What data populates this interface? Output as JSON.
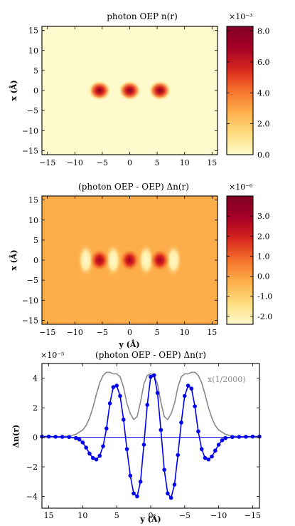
{
  "chart_data": [
    {
      "type": "heatmap",
      "title": "photon OEP n(r)",
      "ylabel": "x (Å)",
      "xlabel": "",
      "xlim": [
        -16,
        16
      ],
      "ylim": [
        -16,
        16
      ],
      "xticks": [
        "−15",
        "−10",
        "−5",
        "0",
        "5",
        "10",
        "15"
      ],
      "yticks": [
        "15",
        "10",
        "5",
        "0",
        "−5",
        "−10",
        "−15"
      ],
      "blobs": [
        {
          "y": -5.5,
          "x": 0
        },
        {
          "y": 0,
          "x": 0
        },
        {
          "y": 5.5,
          "x": 0
        }
      ],
      "colorbar": {
        "exponent_label": "×10⁻³",
        "range": [
          0,
          8.3
        ],
        "ticks": [
          8.0,
          6.0,
          4.0,
          2.0,
          0.0
        ],
        "tick_labels": [
          "8.0",
          "6.0",
          "4.0",
          "2.0",
          "0.0"
        ],
        "colors": [
          "#fffacd",
          "#fddc7e",
          "#fdae4a",
          "#f5712b",
          "#d7261e",
          "#a50026",
          "#800026"
        ]
      }
    },
    {
      "type": "heatmap",
      "title": "(photon OEP - OEP) Δn(r)",
      "xlabel": "y (Å)",
      "ylabel": "x (Å)",
      "xlim": [
        -16,
        16
      ],
      "ylim": [
        -16,
        16
      ],
      "xticks": [
        "−15",
        "−10",
        "−5",
        "0",
        "5",
        "10",
        "15"
      ],
      "yticks": [
        "15",
        "10",
        "5",
        "0",
        "−5",
        "−10",
        "−15"
      ],
      "peaks": [
        {
          "y": -5.5,
          "x": 0
        },
        {
          "y": 0,
          "x": 0
        },
        {
          "y": 5.5,
          "x": 0
        }
      ],
      "troughs": [
        {
          "y": -8,
          "x": 0
        },
        {
          "y": -3,
          "x": 0
        },
        {
          "y": 3,
          "x": 0
        },
        {
          "y": 8,
          "x": 0
        }
      ],
      "background_value": 0.0,
      "colorbar": {
        "exponent_label": "×10⁻⁶",
        "range": [
          -2.4,
          4.0
        ],
        "ticks": [
          3.0,
          2.0,
          1.0,
          0.0,
          -1.0,
          -2.0
        ],
        "tick_labels": [
          "3.0",
          "2.0",
          "1.0",
          "0.0",
          "-1.0",
          "-2.0"
        ],
        "colors": [
          "#fffacd",
          "#fddc7e",
          "#fdae4a",
          "#f5712b",
          "#d7261e",
          "#a50026",
          "#800026"
        ]
      }
    },
    {
      "type": "line",
      "title": "(photon OEP - OEP) Δn(r)",
      "xlabel": "y (Å)",
      "ylabel": "Δn(r)",
      "exponent_label": "×10⁻⁵",
      "xlim": [
        16,
        -16
      ],
      "ylim": [
        -4.8,
        5.0
      ],
      "xticks": [
        "15",
        "10",
        "5",
        "0",
        "−5",
        "−10",
        "−15"
      ],
      "yticks": [
        "4",
        "2",
        "0",
        "−2",
        "−4"
      ],
      "annotation": "x(1/2000)",
      "series": [
        {
          "color": "#0000ee",
          "x": [
            16,
            15,
            14,
            13,
            12,
            11,
            10.5,
            10,
            9.5,
            9,
            8.5,
            8,
            7.5,
            7,
            6.5,
            6,
            5.5,
            5,
            4.5,
            4,
            3.5,
            3,
            2.5,
            2,
            1.5,
            1,
            0.5,
            0,
            -0.5,
            -1,
            -1.5,
            -2,
            -2.5,
            -3,
            -3.5,
            -4,
            -4.5,
            -5,
            -5.5,
            -6,
            -6.5,
            -7,
            -7.5,
            -8,
            -8.5,
            -9,
            -9.5,
            -10,
            -10.5,
            -11,
            -12,
            -13,
            -14,
            -15,
            -16
          ],
          "y": [
            0.05,
            0.05,
            0.04,
            0.03,
            0.02,
            -0.05,
            -0.15,
            -0.35,
            -0.7,
            -1.1,
            -1.4,
            -1.5,
            -1.25,
            -0.6,
            0.6,
            2.3,
            3.4,
            3.5,
            2.8,
            1.2,
            -0.8,
            -2.6,
            -3.8,
            -4.0,
            -3.0,
            -0.5,
            2.2,
            4.1,
            4.2,
            3.0,
            0.5,
            -2.2,
            -3.8,
            -4.1,
            -3.2,
            -1.2,
            1.0,
            2.8,
            3.5,
            3.3,
            2.1,
            0.4,
            -0.8,
            -1.4,
            -1.5,
            -1.3,
            -0.9,
            -0.5,
            -0.2,
            -0.05,
            0.02,
            0.03,
            0.04,
            0.05,
            0.05
          ]
        },
        {
          "color": "#888888",
          "x": [
            16,
            14,
            12,
            11,
            10,
            9.5,
            9,
            8.5,
            8,
            7.5,
            7,
            6.5,
            6,
            5.5,
            5,
            4.5,
            4,
            3.5,
            3,
            2.5,
            2,
            1.5,
            1,
            0.5,
            0,
            -0.5,
            -1,
            -1.5,
            -2,
            -2.5,
            -3,
            -3.5,
            -4,
            -4.5,
            -5,
            -5.5,
            -6,
            -6.5,
            -7,
            -7.5,
            -8,
            -8.5,
            -9,
            -9.5,
            -10,
            -11,
            -12,
            -14,
            -16
          ],
          "y": [
            0.0,
            0.02,
            0.08,
            0.2,
            0.5,
            0.8,
            1.3,
            2.0,
            2.9,
            3.7,
            4.2,
            4.4,
            4.4,
            4.3,
            4.3,
            4.1,
            3.4,
            2.3,
            1.6,
            1.2,
            1.4,
            2.4,
            3.6,
            4.2,
            4.3,
            4.2,
            3.6,
            2.4,
            1.4,
            1.2,
            1.6,
            2.3,
            3.4,
            4.1,
            4.3,
            4.3,
            4.4,
            4.4,
            4.2,
            3.7,
            2.9,
            2.0,
            1.3,
            0.8,
            0.5,
            0.2,
            0.08,
            0.02,
            0.0
          ]
        }
      ]
    }
  ]
}
